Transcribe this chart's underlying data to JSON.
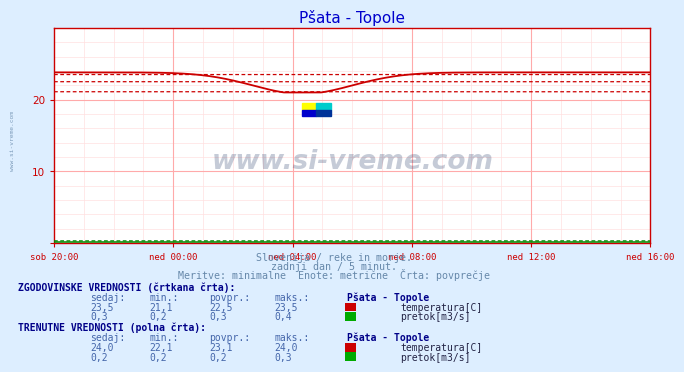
{
  "title": "Pšata - Topole",
  "bg_color": "#ddeeff",
  "plot_bg_color": "#ffffff",
  "grid_major_color": "#ffaaaa",
  "grid_minor_color": "#ffe0e0",
  "title_color": "#0000cc",
  "axis_color": "#cc0000",
  "tick_color": "#8888aa",
  "text_color": "#6688aa",
  "table_header_color": "#000088",
  "table_value_color": "#4466aa",
  "watermark_text": "www.si-vreme.com",
  "watermark_color": "#1a3060",
  "watermark_alpha": 0.25,
  "left_text": "www.si-vreme.com",
  "subtitle1": "Slovenija / reke in morje.",
  "subtitle2": "zadnji dan / 5 minut.",
  "subtitle3": "Meritve: minimalne  Enote: metrične  Črta: povprečje",
  "xtick_labels": [
    "sob 20:00",
    "ned 00:00",
    "ned 04:00",
    "ned 08:00",
    "ned 12:00",
    "ned 16:00"
  ],
  "xtick_positions": [
    0,
    48,
    96,
    144,
    192,
    240
  ],
  "ylim": [
    0,
    30
  ],
  "xlim": [
    0,
    240
  ],
  "red_color": "#cc0000",
  "green_color": "#008800",
  "hist_label1": "ZGODOVINSKE VREDNOSTI (črtkana črta):",
  "cur_label1": "TRENUTNE VREDNOSTI (polna črta):",
  "col_headers": [
    "sedaj:",
    "min.:",
    "povpr.:",
    "maks.:"
  ],
  "station_name": "Pšata - Topole",
  "temp_label": "temperatura[C]",
  "flow_label": "pretok[m3/s]",
  "hist_temp_vals": [
    "23,5",
    "21,1",
    "22,5",
    "23,5"
  ],
  "hist_flow_vals": [
    "0,3",
    "0,2",
    "0,3",
    "0,4"
  ],
  "cur_temp_vals": [
    "24,0",
    "22,1",
    "23,1",
    "24,0"
  ],
  "cur_flow_vals": [
    "0,2",
    "0,2",
    "0,2",
    "0,3"
  ],
  "temp_icon_color": "#cc0000",
  "flow_icon_color": "#00aa00"
}
